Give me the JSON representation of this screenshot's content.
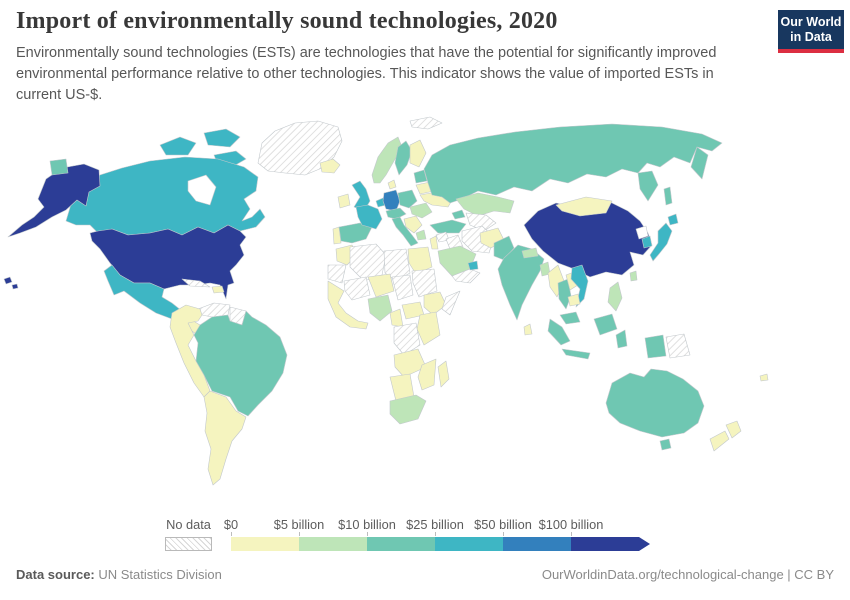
{
  "header": {
    "title": "Import of environmentally sound technologies, 2020",
    "subtitle": "Environmentally sound technologies (ESTs) are technologies that have the potential for significantly improved environmental performance relative to other technologies. This indicator shows the value of imported ESTs in current US-$.",
    "logo": {
      "line1": "Our World",
      "line2": "in Data",
      "bg_color": "#18375f",
      "accent_color": "#dc2e41"
    }
  },
  "footer": {
    "source_label": "Data source:",
    "source_value": " UN Statistics Division",
    "right_text": "OurWorldinData.org/technological-change | CC BY"
  },
  "chart_data": {
    "type": "choropleth-map",
    "title": "Import of environmentally sound technologies, 2020",
    "unit": "current US-$",
    "year": 2020,
    "legend": {
      "no_data_label": "No data",
      "bin_edge_labels": [
        "$0",
        "$5 billion",
        "$10 billion",
        "$25 billion",
        "$50 billion",
        "$100 billion"
      ],
      "bin_ranges": [
        "$0–$5 billion",
        "$5–$10 billion",
        "$10–$25 billion",
        "$25–$50 billion",
        "$50–$100 billion",
        "$100 billion+"
      ],
      "bin_colors": [
        "#f5f4bf",
        "#bee5b8",
        "#6fc7b2",
        "#3eb6c4",
        "#3380bd",
        "#2c3d96"
      ],
      "no_data_hatch_color": "#d6d6d6",
      "border_color": "#c2c8cc"
    },
    "bin_semantics": "region value = index into bin_ranges; -1 = no data; missing = not shown/white",
    "regions": {
      "united-states": 5,
      "canada": 3,
      "greenland": -1,
      "mexico": 3,
      "central-america": 0,
      "cuba": -1,
      "hispaniola": 0,
      "venezuela": -1,
      "guyanas": -1,
      "andean-states": 0,
      "brazil": 2,
      "southern-cone": 0,
      "bering-island": 2,
      "iceland": 0,
      "ireland": 0,
      "united-kingdom": 3,
      "portugal": 0,
      "spain": 2,
      "france": 3,
      "benelux": 3,
      "germany": 4,
      "denmark": 0,
      "norway": 1,
      "sweden": 2,
      "finland": 0,
      "baltics": 2,
      "poland": 2,
      "central-europe": 2,
      "italy": 2,
      "balkans": 0,
      "greece": 1,
      "romania": 1,
      "ukraine": 0,
      "belarus": 0,
      "svalbard": -1,
      "russia": 2,
      "kazakhstan": 1,
      "central-asia": -1,
      "caucasus": 2,
      "turkey": 2,
      "syria": -1,
      "iraq": -1,
      "iran": -1,
      "levant": 0,
      "saudi-arabia": 1,
      "yemen-oman": -1,
      "uae": 3,
      "morocco": 0,
      "mauritania": -1,
      "algeria": -1,
      "libya": -1,
      "egypt": 0,
      "mali": -1,
      "niger": 0,
      "chad": -1,
      "sudan": -1,
      "west-africa": 0,
      "nigeria": 1,
      "cameroon": 0,
      "central-african-republic": 0,
      "ethiopia": 0,
      "somalia": -1,
      "east-africa": 0,
      "dr-congo": -1,
      "angola-zambia": 0,
      "mozambique": 0,
      "namibia-botswana": 0,
      "south-africa": 1,
      "madagascar": 0,
      "afghanistan": 0,
      "pakistan": 2,
      "india": 2,
      "nepal": 1,
      "bangladesh": 1,
      "sri-lanka": 0,
      "china": 5,
      "mongolia": 0,
      "south-korea": 3,
      "japan": 3,
      "taiwan": 1,
      "myanmar": 0,
      "thailand": 2,
      "laos": 0,
      "vietnam": 3,
      "cambodia": 0,
      "malaysia": 2,
      "indonesia": 2,
      "philippines": 1,
      "papua-new-guinea": -1,
      "australia": 2,
      "new-zealand": 0,
      "fiji": 0
    }
  }
}
